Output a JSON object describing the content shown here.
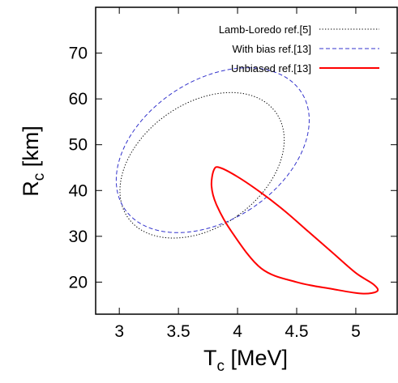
{
  "chart_data": {
    "type": "line",
    "title": "",
    "xlabel": {
      "main": "T",
      "sub": "c",
      "rest": " [MeV]"
    },
    "ylabel": {
      "main": "R",
      "sub": "c",
      "rest": " [km]"
    },
    "xlim": [
      2.8,
      5.35
    ],
    "ylim": [
      13,
      80
    ],
    "x_ticks": [
      3,
      3.5,
      4,
      4.5,
      5
    ],
    "x_tick_labels": [
      "3",
      "3.5",
      "4",
      "4.5",
      "5"
    ],
    "y_ticks": [
      20,
      30,
      40,
      50,
      60,
      70
    ],
    "y_tick_labels": [
      "20",
      "30",
      "40",
      "50",
      "60",
      "70"
    ],
    "grid": false,
    "legend_position": "top-right",
    "series": [
      {
        "name": "Lamb-Loredo ref.[5]",
        "color": "#000000",
        "style": "dotted",
        "shape": "ellipse",
        "center": [
          3.7,
          45.5
        ],
        "semi_axes_data": {
          "x": 0.522,
          "y": 19.8
        },
        "points": [
          [
            3.2,
            63.5
          ],
          [
            3.25,
            65.4
          ],
          [
            3.45,
            60
          ],
          [
            3.8,
            49
          ],
          [
            4.2,
            33
          ],
          [
            4.22,
            26.5
          ],
          [
            4.0,
            30
          ],
          [
            3.6,
            37
          ],
          [
            3.3,
            45
          ],
          [
            3.18,
            55
          ]
        ]
      },
      {
        "name": "With bias ref.[13]",
        "color": "#3333cc",
        "style": "dashed",
        "shape": "ellipse",
        "center": [
          3.79,
          48.8
        ],
        "semi_axes_data": {
          "x": 0.592,
          "y": 23.1
        },
        "points": [
          [
            3.2,
            70
          ],
          [
            3.22,
            72
          ],
          [
            3.45,
            66
          ],
          [
            3.9,
            52
          ],
          [
            4.35,
            27
          ],
          [
            4.34,
            25.5
          ],
          [
            4.1,
            30
          ],
          [
            3.6,
            38
          ],
          [
            3.28,
            48
          ],
          [
            3.18,
            62
          ]
        ]
      },
      {
        "name": "Unbiased ref.[13]",
        "color": "#ff0000",
        "style": "solid",
        "shape": "closed-curve",
        "points": [
          [
            3.8,
            44.5
          ],
          [
            3.85,
            45
          ],
          [
            4.0,
            43
          ],
          [
            4.2,
            39.5
          ],
          [
            4.4,
            35.5
          ],
          [
            4.6,
            31
          ],
          [
            4.8,
            26.5
          ],
          [
            5.0,
            22
          ],
          [
            5.15,
            19.5
          ],
          [
            5.18,
            18
          ],
          [
            5.05,
            17.5
          ],
          [
            4.8,
            18.5
          ],
          [
            4.5,
            20
          ],
          [
            4.2,
            23
          ],
          [
            3.95,
            31
          ],
          [
            3.82,
            37
          ],
          [
            3.78,
            41
          ],
          [
            3.8,
            44.5
          ]
        ]
      }
    ]
  }
}
